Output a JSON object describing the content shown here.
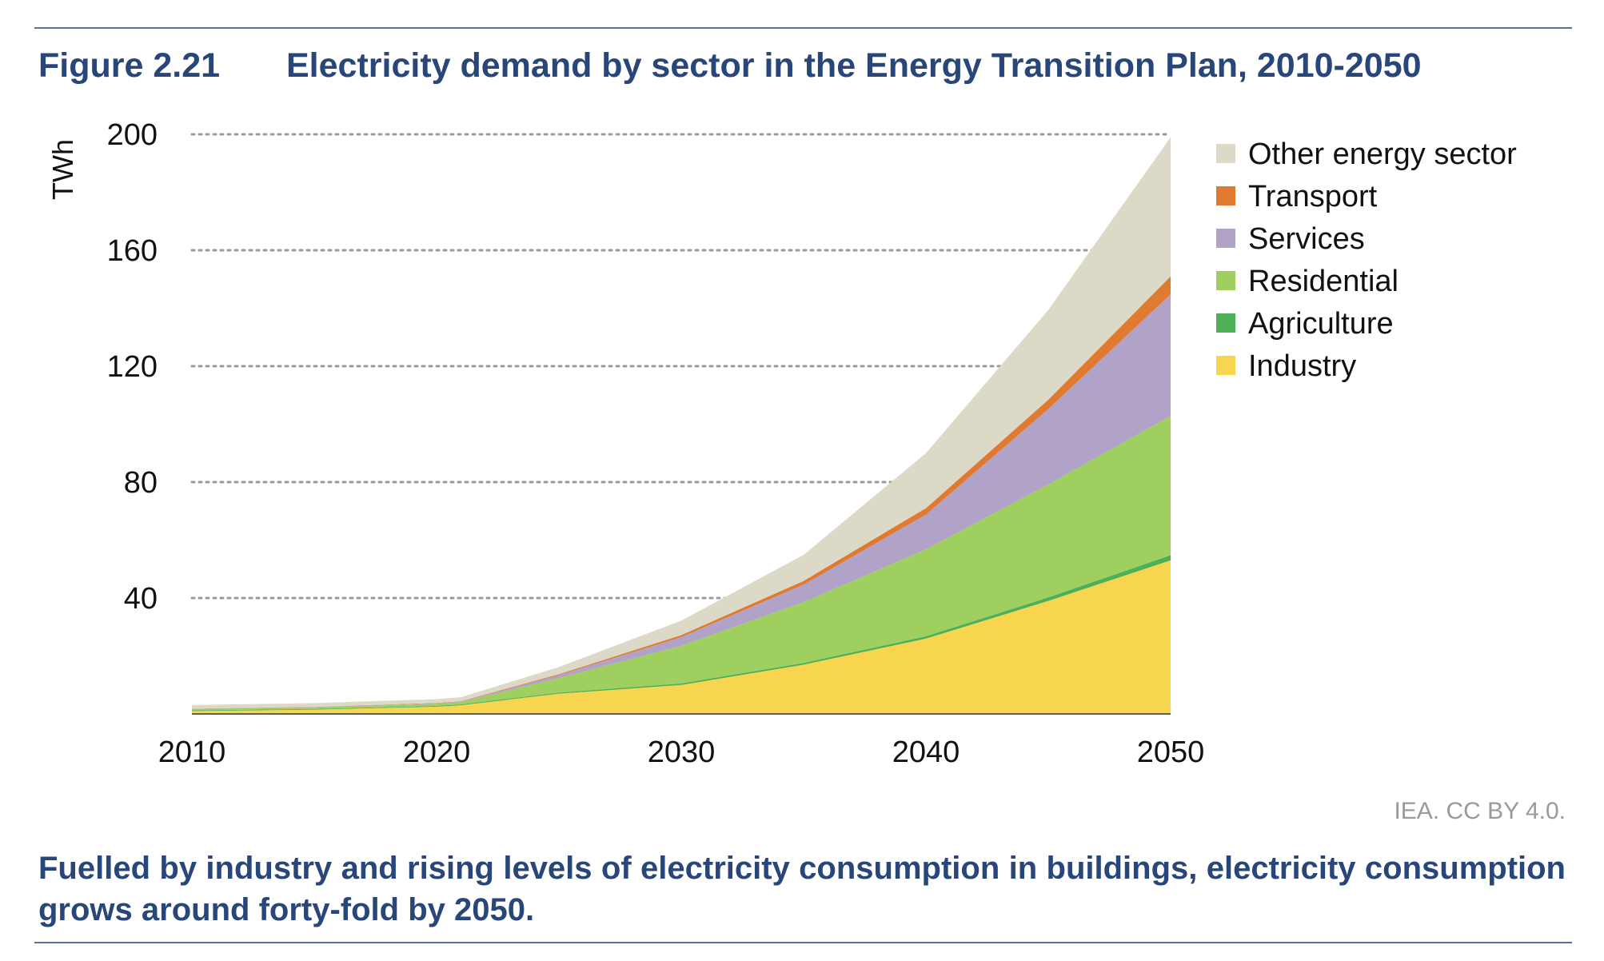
{
  "figure": {
    "number": "Figure 2.21",
    "title": "Electricity demand by sector in the Energy Transition Plan, 2010-2050"
  },
  "credit": "IEA. CC BY 4.0.",
  "caption": "Fuelled by industry and rising levels of electricity consumption in buildings, electricity consumption grows around forty-fold by 2050.",
  "chart_data": {
    "type": "area",
    "stacked": true,
    "ylabel": "TWh",
    "xlabel": "",
    "xlim": [
      2010,
      2050
    ],
    "ylim": [
      0,
      200
    ],
    "yticks": [
      40,
      80,
      120,
      160,
      200
    ],
    "xticks": [
      2010,
      2020,
      2030,
      2040,
      2050
    ],
    "grid": "horizontal-dotted",
    "legend_position": "top-right",
    "x": [
      2010,
      2015,
      2020,
      2021,
      2025,
      2030,
      2035,
      2040,
      2045,
      2050
    ],
    "series": [
      {
        "name": "Industry",
        "color": "#f7d54f",
        "values": [
          1,
          1.5,
          2.5,
          3,
          7,
          10,
          17,
          26,
          39,
          53
        ]
      },
      {
        "name": "Agriculture",
        "color": "#4daf56",
        "values": [
          0.2,
          0.2,
          0.3,
          0.3,
          0.4,
          0.5,
          0.6,
          0.8,
          1.2,
          1.8
        ]
      },
      {
        "name": "Residential",
        "color": "#9ecf5f",
        "values": [
          0.5,
          0.6,
          0.7,
          0.8,
          5,
          13,
          21,
          30,
          39,
          48
        ]
      },
      {
        "name": "Services",
        "color": "#b1a2c8",
        "values": [
          0.1,
          0.1,
          0.2,
          0.2,
          1,
          3,
          6,
          12,
          26,
          42
        ]
      },
      {
        "name": "Transport",
        "color": "#e07a30",
        "values": [
          0.05,
          0.05,
          0.1,
          0.1,
          0.3,
          0.7,
          1.3,
          2.2,
          3.2,
          6.2
        ]
      },
      {
        "name": "Other energy sector",
        "color": "#dcdac6",
        "values": [
          1.2,
          1.3,
          1.3,
          1.4,
          2.5,
          5,
          9,
          19,
          31,
          48
        ]
      }
    ]
  }
}
